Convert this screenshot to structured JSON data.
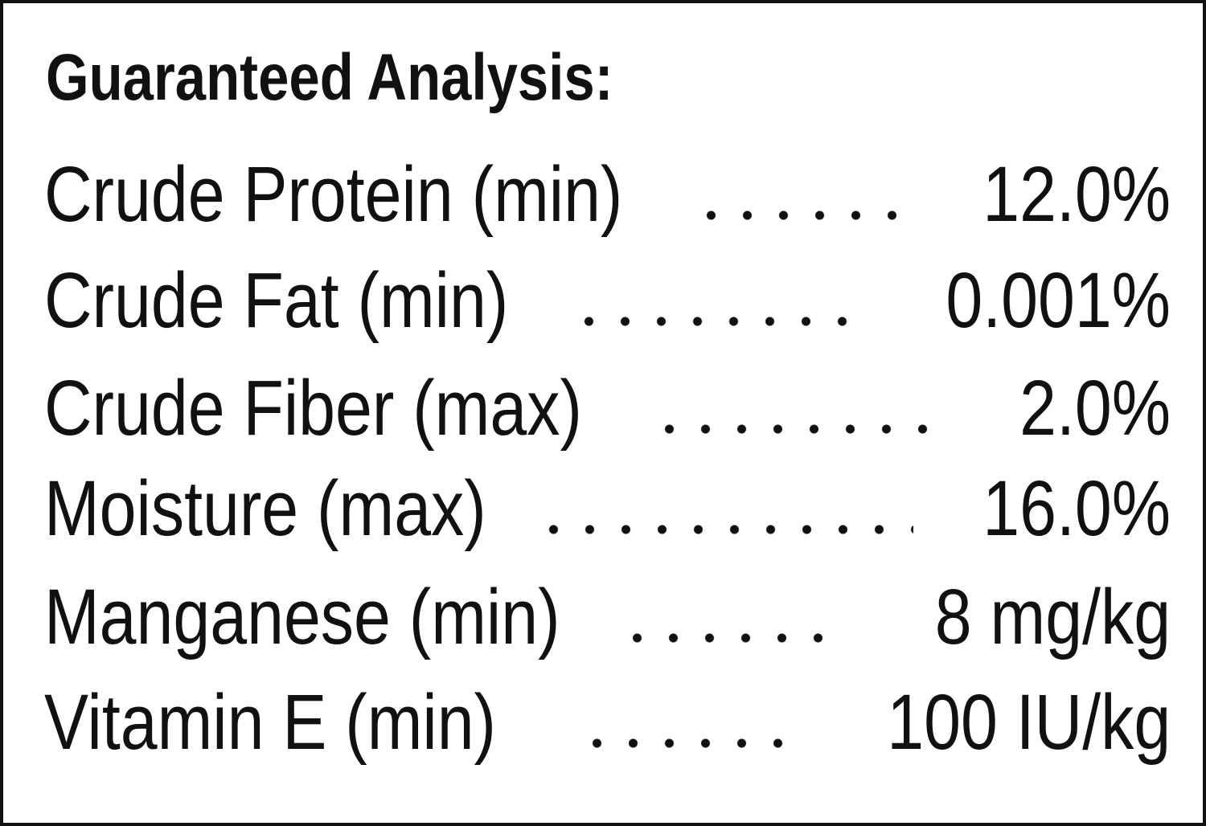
{
  "title": "Guaranteed Analysis:",
  "rows": [
    {
      "label": "Crude Protein (min)",
      "value": "12.0%"
    },
    {
      "label": "Crude Fat (min)",
      "value": "0.001%"
    },
    {
      "label": "Crude Fiber (max)",
      "value": "2.0%"
    },
    {
      "label": "Moisture (max)",
      "value": "16.0%"
    },
    {
      "label": "Manganese (min)",
      "value": "8 mg/kg"
    },
    {
      "label": "Vitamin E (min)",
      "value": "100 IU/kg"
    }
  ]
}
